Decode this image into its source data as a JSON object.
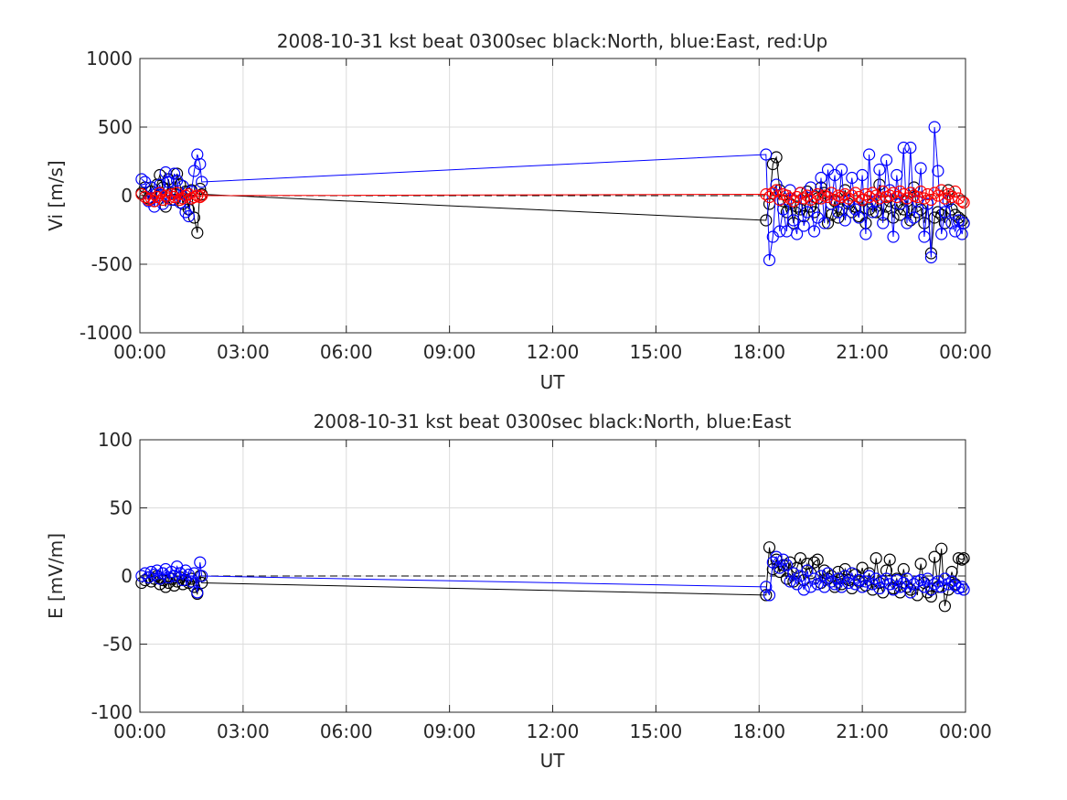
{
  "chart_data": [
    {
      "type": "line",
      "title": "2008-10-31 kst beat 0300sec black:North, blue:East, red:Up",
      "xlabel": "UT",
      "ylabel": "Vi [m/s]",
      "xlim": [
        0,
        24
      ],
      "ylim": [
        -1000,
        1000
      ],
      "xticks": [
        0,
        3,
        6,
        9,
        12,
        15,
        18,
        21,
        24
      ],
      "xticklabels": [
        "00:00",
        "03:00",
        "06:00",
        "09:00",
        "12:00",
        "15:00",
        "18:00",
        "21:00",
        "00:00"
      ],
      "yticks": [
        1000,
        500,
        0,
        -500,
        -1000
      ],
      "yticklabels": [
        "1000",
        "500",
        "0",
        "-500",
        "-1000"
      ],
      "grid": true,
      "zero_line": "dashed",
      "series": [
        {
          "name": "North",
          "color": "#000000",
          "marker": "circle",
          "x": [
            0.05,
            0.15,
            0.25,
            0.33,
            0.42,
            0.5,
            0.58,
            0.67,
            0.75,
            0.83,
            0.92,
            1.0,
            1.08,
            1.17,
            1.25,
            1.33,
            1.42,
            1.5,
            1.58,
            1.67,
            1.75,
            1.8,
            18.2,
            18.3,
            18.4,
            18.5,
            18.6,
            18.7,
            18.8,
            18.9,
            19.0,
            19.1,
            19.2,
            19.3,
            19.4,
            19.5,
            19.6,
            19.7,
            19.8,
            19.9,
            20.0,
            20.1,
            20.2,
            20.3,
            20.4,
            20.5,
            20.6,
            20.7,
            20.8,
            20.9,
            21.0,
            21.1,
            21.2,
            21.3,
            21.4,
            21.5,
            21.6,
            21.7,
            21.8,
            21.9,
            22.0,
            22.1,
            22.2,
            22.3,
            22.4,
            22.5,
            22.6,
            22.7,
            22.8,
            22.9,
            23.0,
            23.1,
            23.2,
            23.3,
            23.4,
            23.5,
            23.6,
            23.7,
            23.8,
            23.9,
            23.95
          ],
          "y": [
            20,
            60,
            -20,
            30,
            -40,
            80,
            150,
            60,
            -80,
            120,
            20,
            -30,
            160,
            80,
            -60,
            30,
            -100,
            40,
            -160,
            -270,
            50,
            10,
            -180,
            -60,
            230,
            280,
            40,
            -40,
            -120,
            -60,
            -200,
            -80,
            -100,
            -150,
            30,
            -80,
            -120,
            -20,
            60,
            20,
            -200,
            -140,
            -40,
            -160,
            -100,
            40,
            -60,
            -120,
            -80,
            -150,
            -30,
            -200,
            -100,
            -60,
            -120,
            80,
            -140,
            -80,
            -40,
            -160,
            -60,
            -140,
            -100,
            -40,
            -180,
            60,
            -120,
            -100,
            -200,
            -60,
            -420,
            -160,
            -120,
            -140,
            -200,
            40,
            -100,
            -140,
            -160,
            -180,
            -200
          ]
        },
        {
          "name": "East",
          "color": "#0000ff",
          "marker": "circle",
          "x": [
            0.05,
            0.15,
            0.25,
            0.33,
            0.42,
            0.5,
            0.58,
            0.67,
            0.75,
            0.83,
            0.92,
            1.0,
            1.08,
            1.17,
            1.25,
            1.33,
            1.42,
            1.5,
            1.58,
            1.67,
            1.75,
            1.8,
            18.2,
            18.3,
            18.4,
            18.5,
            18.6,
            18.7,
            18.8,
            18.9,
            19.0,
            19.1,
            19.2,
            19.3,
            19.4,
            19.5,
            19.6,
            19.7,
            19.8,
            19.9,
            20.0,
            20.1,
            20.2,
            20.3,
            20.4,
            20.5,
            20.6,
            20.7,
            20.8,
            20.9,
            21.0,
            21.1,
            21.2,
            21.3,
            21.4,
            21.5,
            21.6,
            21.7,
            21.8,
            21.9,
            22.0,
            22.1,
            22.2,
            22.3,
            22.4,
            22.5,
            22.6,
            22.7,
            22.8,
            22.9,
            23.0,
            23.1,
            23.2,
            23.3,
            23.4,
            23.5,
            23.6,
            23.7,
            23.8,
            23.9,
            23.95
          ],
          "y": [
            120,
            100,
            -40,
            60,
            -80,
            20,
            80,
            -60,
            170,
            100,
            -30,
            160,
            110,
            -50,
            70,
            -120,
            -150,
            30,
            180,
            300,
            230,
            100,
            300,
            -470,
            -300,
            80,
            -260,
            -100,
            -260,
            40,
            -180,
            -280,
            20,
            -220,
            -120,
            60,
            -260,
            -160,
            130,
            -200,
            190,
            -60,
            150,
            -120,
            190,
            -180,
            -40,
            130,
            -100,
            -160,
            150,
            -280,
            300,
            -120,
            -40,
            190,
            -200,
            260,
            40,
            -300,
            150,
            -60,
            350,
            -200,
            350,
            -160,
            -40,
            200,
            -300,
            -60,
            -450,
            500,
            180,
            -280,
            -120,
            -40,
            -200,
            -260,
            -180,
            -280,
            -200
          ]
        },
        {
          "name": "Up",
          "color": "#ff0000",
          "marker": "circle",
          "x": [
            0.05,
            0.15,
            0.25,
            0.33,
            0.42,
            0.5,
            0.58,
            0.67,
            0.75,
            0.83,
            0.92,
            1.0,
            1.08,
            1.17,
            1.25,
            1.33,
            1.42,
            1.5,
            1.58,
            1.67,
            1.75,
            1.8,
            18.2,
            18.3,
            18.4,
            18.5,
            18.6,
            18.7,
            18.8,
            18.9,
            19.0,
            19.1,
            19.2,
            19.3,
            19.4,
            19.5,
            19.6,
            19.7,
            19.8,
            19.9,
            20.0,
            20.1,
            20.2,
            20.3,
            20.4,
            20.5,
            20.6,
            20.7,
            20.8,
            20.9,
            21.0,
            21.1,
            21.2,
            21.3,
            21.4,
            21.5,
            21.6,
            21.7,
            21.8,
            21.9,
            22.0,
            22.1,
            22.2,
            22.3,
            22.4,
            22.5,
            22.6,
            22.7,
            22.8,
            22.9,
            23.0,
            23.1,
            23.2,
            23.3,
            23.4,
            23.5,
            23.6,
            23.7,
            23.8,
            23.9,
            23.95
          ],
          "y": [
            10,
            -10,
            -30,
            -20,
            -40,
            -10,
            20,
            -30,
            0,
            -20,
            10,
            -10,
            20,
            -30,
            -20,
            0,
            10,
            -20,
            -10,
            0,
            -10,
            0,
            10,
            -10,
            20,
            40,
            -30,
            10,
            0,
            -20,
            -40,
            -10,
            20,
            -20,
            0,
            -30,
            -10,
            10,
            -20,
            0,
            -10,
            20,
            -30,
            0,
            -10,
            10,
            -20,
            0,
            20,
            -10,
            -30,
            10,
            -10,
            20,
            0,
            -20,
            30,
            -10,
            0,
            20,
            -10,
            30,
            10,
            -20,
            20,
            0,
            -10,
            30,
            -20,
            10,
            -30,
            20,
            0,
            40,
            -20,
            10,
            -10,
            30,
            -20,
            -40,
            -50
          ]
        }
      ]
    },
    {
      "type": "line",
      "title": "2008-10-31 kst beat 0300sec black:North, blue:East",
      "xlabel": "UT",
      "ylabel": "E [mV/m]",
      "xlim": [
        0,
        24
      ],
      "ylim": [
        -100,
        100
      ],
      "xticks": [
        0,
        3,
        6,
        9,
        12,
        15,
        18,
        21,
        24
      ],
      "xticklabels": [
        "00:00",
        "03:00",
        "06:00",
        "09:00",
        "12:00",
        "15:00",
        "18:00",
        "21:00",
        "00:00"
      ],
      "yticks": [
        100,
        50,
        0,
        -50,
        -100
      ],
      "yticklabels": [
        "100",
        "50",
        "0",
        "-50",
        "-100"
      ],
      "grid": true,
      "zero_line": "dashed",
      "series": [
        {
          "name": "North",
          "color": "#000000",
          "marker": "circle",
          "x": [
            0.05,
            0.15,
            0.25,
            0.33,
            0.42,
            0.5,
            0.58,
            0.67,
            0.75,
            0.83,
            0.92,
            1.0,
            1.08,
            1.17,
            1.25,
            1.33,
            1.42,
            1.5,
            1.58,
            1.67,
            1.75,
            1.8,
            18.2,
            18.3,
            18.4,
            18.5,
            18.6,
            18.7,
            18.8,
            18.9,
            19.0,
            19.1,
            19.2,
            19.3,
            19.4,
            19.5,
            19.6,
            19.7,
            19.8,
            19.9,
            20.0,
            20.1,
            20.2,
            20.3,
            20.4,
            20.5,
            20.6,
            20.7,
            20.8,
            20.9,
            21.0,
            21.1,
            21.2,
            21.3,
            21.4,
            21.5,
            21.6,
            21.7,
            21.8,
            21.9,
            22.0,
            22.1,
            22.2,
            22.3,
            22.4,
            22.5,
            22.6,
            22.7,
            22.8,
            22.9,
            23.0,
            23.1,
            23.2,
            23.3,
            23.4,
            23.5,
            23.6,
            23.7,
            23.8,
            23.9,
            23.95
          ],
          "y": [
            -5,
            -3,
            -1,
            -4,
            -2,
            0,
            -6,
            -3,
            -8,
            -5,
            -2,
            -7,
            -4,
            -1,
            -6,
            -3,
            -5,
            -2,
            -8,
            -13,
            0,
            -5,
            -14,
            21,
            5,
            12,
            3,
            8,
            -2,
            10,
            -4,
            6,
            13,
            -3,
            9,
            2,
            10,
            12,
            -5,
            4,
            -2,
            0,
            -8,
            3,
            -6,
            5,
            -3,
            -9,
            1,
            -4,
            6,
            -7,
            2,
            -10,
            13,
            -5,
            -12,
            4,
            12,
            -9,
            -2,
            -12,
            5,
            -8,
            -10,
            -6,
            -14,
            9,
            -5,
            -12,
            -15,
            14,
            -8,
            20,
            -22,
            -10,
            3,
            -6,
            13,
            12,
            13
          ]
        },
        {
          "name": "East",
          "color": "#0000ff",
          "marker": "circle",
          "x": [
            0.05,
            0.15,
            0.25,
            0.33,
            0.42,
            0.5,
            0.58,
            0.67,
            0.75,
            0.83,
            0.92,
            1.0,
            1.08,
            1.17,
            1.25,
            1.33,
            1.42,
            1.5,
            1.58,
            1.67,
            1.75,
            1.8,
            18.2,
            18.3,
            18.4,
            18.5,
            18.6,
            18.7,
            18.8,
            18.9,
            19.0,
            19.1,
            19.2,
            19.3,
            19.4,
            19.5,
            19.6,
            19.7,
            19.8,
            19.9,
            20.0,
            20.1,
            20.2,
            20.3,
            20.4,
            20.5,
            20.6,
            20.7,
            20.8,
            20.9,
            21.0,
            21.1,
            21.2,
            21.3,
            21.4,
            21.5,
            21.6,
            21.7,
            21.8,
            21.9,
            22.0,
            22.1,
            22.2,
            22.3,
            22.4,
            22.5,
            22.6,
            22.7,
            22.8,
            22.9,
            23.0,
            23.1,
            23.2,
            23.3,
            23.4,
            23.5,
            23.6,
            23.7,
            23.8,
            23.9,
            23.95
          ],
          "y": [
            0,
            2,
            -1,
            3,
            1,
            4,
            -2,
            2,
            5,
            -1,
            3,
            0,
            7,
            2,
            -3,
            4,
            1,
            -4,
            2,
            -12,
            10,
            0,
            -8,
            -14,
            10,
            14,
            6,
            12,
            8,
            -4,
            2,
            -6,
            0,
            -10,
            4,
            -8,
            -2,
            -6,
            0,
            -8,
            2,
            -4,
            -6,
            -2,
            -8,
            0,
            -5,
            2,
            -6,
            -3,
            -8,
            -4,
            0,
            -6,
            -2,
            -9,
            -4,
            -2,
            -6,
            -10,
            -3,
            -8,
            -5,
            -2,
            -12,
            -6,
            -4,
            -3,
            -8,
            -2,
            -10,
            -6,
            -4,
            -8,
            -2,
            -6,
            -4,
            -7,
            -9,
            -8,
            -10
          ]
        }
      ]
    }
  ]
}
